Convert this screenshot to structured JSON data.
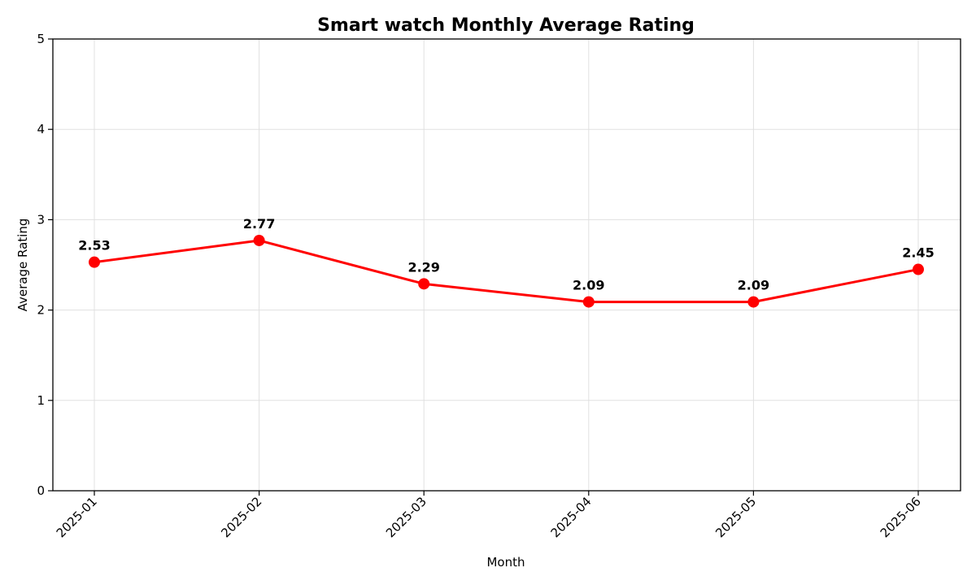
{
  "chart_data": {
    "type": "line",
    "title": "Smart watch Monthly Average Rating",
    "xlabel": "Month",
    "ylabel": "Average Rating",
    "categories": [
      "2025-01",
      "2025-02",
      "2025-03",
      "2025-04",
      "2025-05",
      "2025-06"
    ],
    "series": [
      {
        "values": [
          2.53,
          2.77,
          2.29,
          2.09,
          2.09,
          2.45
        ],
        "color": "#ff0000",
        "data_labels": [
          "2.53",
          "2.77",
          "2.29",
          "2.09",
          "2.09",
          "2.45"
        ]
      }
    ],
    "ylim": [
      0,
      5
    ],
    "yticks": [
      0,
      1,
      2,
      3,
      4,
      5
    ],
    "grid": true,
    "x_tick_rotation_deg": 45
  }
}
